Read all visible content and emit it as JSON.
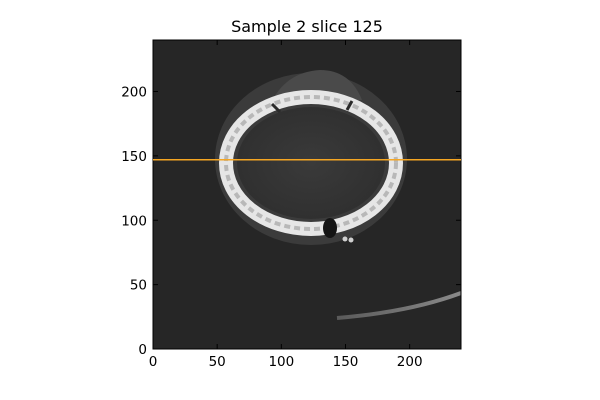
{
  "figure": {
    "title": "Sample 2 slice 125"
  },
  "image": {
    "extent_x": [
      0,
      240
    ],
    "extent_y": [
      0,
      240
    ],
    "background_color": "#262626",
    "description_hint": "axial CT slice, grayscale"
  },
  "overlay": {
    "horizontal_line_y": 147,
    "line_color": "#f5a623"
  },
  "axes": {
    "x_ticks": [
      0,
      50,
      100,
      150,
      200
    ],
    "y_ticks": [
      0,
      50,
      100,
      150,
      200
    ],
    "xlim": [
      0,
      240
    ],
    "ylim": [
      0,
      240
    ]
  }
}
